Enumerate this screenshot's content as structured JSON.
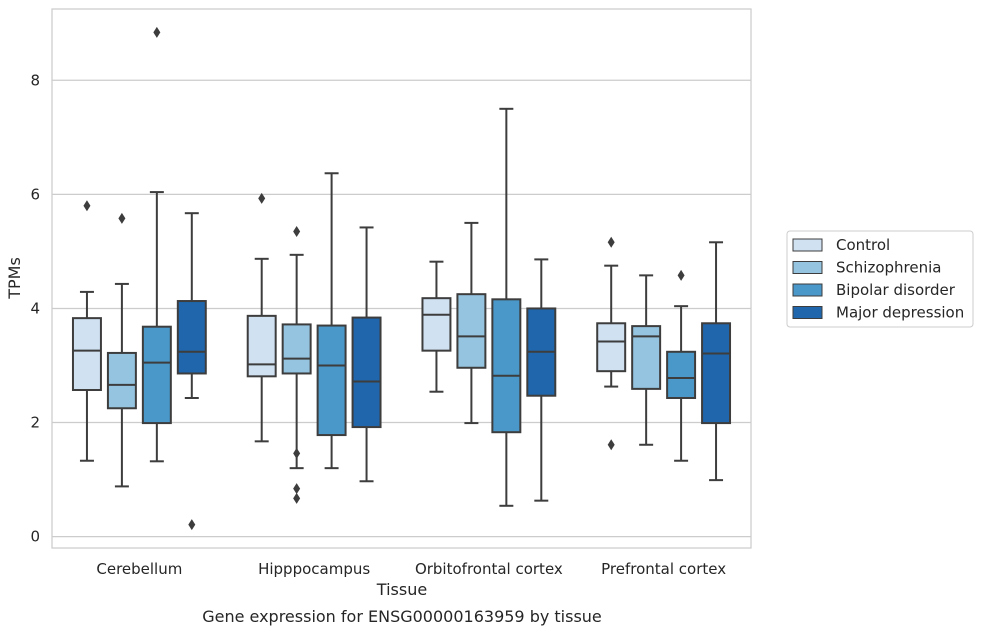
{
  "chart_data": {
    "type": "box",
    "title": "Gene expression for ENSG00000163959 by tissue",
    "xlabel": "Tissue",
    "ylabel": "TPMs",
    "ylim": [
      -0.2,
      9.25
    ],
    "yticks": [
      0,
      2,
      4,
      6,
      8
    ],
    "grid": "horizontal",
    "legend_position": "right",
    "categories": [
      "Cerebellum",
      "Hipppocampus",
      "Orbitofrontal cortex",
      "Prefrontal cortex"
    ],
    "series": [
      {
        "name": "Control",
        "color": "#d0e1f2",
        "boxes": [
          {
            "whislo": 1.33,
            "q1": 2.57,
            "med": 3.26,
            "q3": 3.83,
            "whishi": 4.29,
            "fliers": [
              5.8
            ]
          },
          {
            "whislo": 1.67,
            "q1": 2.81,
            "med": 3.02,
            "q3": 3.87,
            "whishi": 4.87,
            "fliers": [
              5.93
            ]
          },
          {
            "whislo": 2.54,
            "q1": 3.26,
            "med": 3.89,
            "q3": 4.18,
            "whishi": 4.82,
            "fliers": []
          },
          {
            "whislo": 2.63,
            "q1": 2.9,
            "med": 3.42,
            "q3": 3.74,
            "whishi": 4.75,
            "fliers": [
              5.16,
              1.61
            ]
          }
        ]
      },
      {
        "name": "Schizophrenia",
        "color": "#94c4df",
        "boxes": [
          {
            "whislo": 0.88,
            "q1": 2.25,
            "med": 2.66,
            "q3": 3.22,
            "whishi": 4.43,
            "fliers": [
              5.58
            ]
          },
          {
            "whislo": 1.2,
            "q1": 2.86,
            "med": 3.12,
            "q3": 3.72,
            "whishi": 4.94,
            "fliers": [
              5.35,
              1.46,
              0.84,
              0.67
            ]
          },
          {
            "whislo": 1.99,
            "q1": 2.96,
            "med": 3.51,
            "q3": 4.25,
            "whishi": 5.5,
            "fliers": []
          },
          {
            "whislo": 1.61,
            "q1": 2.59,
            "med": 3.51,
            "q3": 3.69,
            "whishi": 4.58,
            "fliers": []
          }
        ]
      },
      {
        "name": "Bipolar disorder",
        "color": "#4a98c9",
        "boxes": [
          {
            "whislo": 1.32,
            "q1": 1.99,
            "med": 3.05,
            "q3": 3.68,
            "whishi": 6.04,
            "fliers": [
              8.84
            ]
          },
          {
            "whislo": 1.2,
            "q1": 1.78,
            "med": 3.0,
            "q3": 3.7,
            "whishi": 6.37,
            "fliers": []
          },
          {
            "whislo": 0.54,
            "q1": 1.83,
            "med": 2.82,
            "q3": 4.16,
            "whishi": 7.5,
            "fliers": []
          },
          {
            "whislo": 1.33,
            "q1": 2.43,
            "med": 2.78,
            "q3": 3.24,
            "whishi": 4.04,
            "fliers": [
              4.58
            ]
          }
        ]
      },
      {
        "name": "Major depression",
        "color": "#2066ac",
        "boxes": [
          {
            "whislo": 2.43,
            "q1": 2.86,
            "med": 3.24,
            "q3": 4.13,
            "whishi": 5.67,
            "fliers": [
              0.21
            ]
          },
          {
            "whislo": 0.97,
            "q1": 1.92,
            "med": 2.72,
            "q3": 3.84,
            "whishi": 5.42,
            "fliers": []
          },
          {
            "whislo": 0.63,
            "q1": 2.47,
            "med": 3.24,
            "q3": 4.0,
            "whishi": 4.86,
            "fliers": []
          },
          {
            "whislo": 0.99,
            "q1": 1.99,
            "med": 3.21,
            "q3": 3.74,
            "whishi": 5.16,
            "fliers": []
          }
        ]
      }
    ]
  }
}
